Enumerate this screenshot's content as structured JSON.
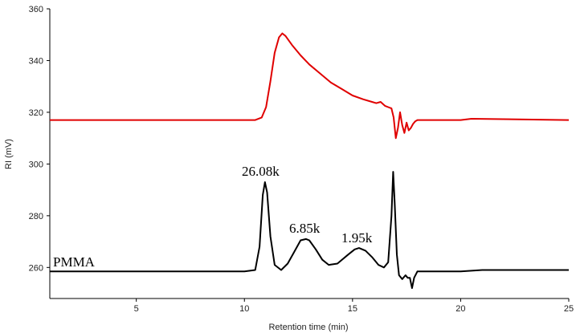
{
  "chart_data": {
    "type": "line",
    "xlabel": "Retention time (min)",
    "ylabel": "RI (mV)",
    "xlim": [
      1,
      25
    ],
    "ylim": [
      248,
      360
    ],
    "x_ticks": [
      5,
      10,
      15,
      20,
      25
    ],
    "y_ticks": [
      260,
      280,
      300,
      320,
      340,
      360
    ],
    "grid": false,
    "series": [
      {
        "name": "",
        "color": "#e00000",
        "x": [
          1,
          10,
          10.5,
          10.8,
          11.0,
          11.2,
          11.4,
          11.6,
          11.75,
          11.9,
          12.2,
          12.6,
          13.0,
          13.5,
          14.0,
          14.5,
          15.0,
          15.5,
          15.9,
          16.1,
          16.3,
          16.5,
          16.65,
          16.8,
          16.9,
          17.0,
          17.1,
          17.2,
          17.3,
          17.4,
          17.5,
          17.6,
          17.7,
          17.8,
          17.9,
          18.0,
          19.0,
          20.0,
          20.5,
          25
        ],
        "y": [
          317,
          317,
          317,
          318,
          322,
          332,
          343,
          349,
          350.5,
          349.5,
          346,
          342,
          338.5,
          335,
          331.5,
          329,
          326.5,
          325,
          324,
          323.5,
          324,
          322.5,
          322,
          321.5,
          318,
          310,
          314,
          320,
          315,
          312,
          316,
          313,
          314,
          315.5,
          316.5,
          317,
          317,
          317,
          317.5,
          317
        ]
      },
      {
        "name": "PMMA",
        "color": "#000000",
        "x": [
          1,
          10,
          10.5,
          10.7,
          10.85,
          10.95,
          11.05,
          11.2,
          11.4,
          11.7,
          12.0,
          12.3,
          12.6,
          12.85,
          13.0,
          13.3,
          13.6,
          13.9,
          14.3,
          14.8,
          15.1,
          15.3,
          15.6,
          15.9,
          16.2,
          16.45,
          16.65,
          16.8,
          16.88,
          16.95,
          17.05,
          17.15,
          17.3,
          17.45,
          17.55,
          17.65,
          17.75,
          17.85,
          18.0,
          20.0,
          21.0,
          25
        ],
        "y": [
          258.5,
          258.5,
          259,
          268,
          288,
          293,
          289,
          272,
          261,
          259,
          261.5,
          266,
          270.5,
          271,
          270.5,
          267,
          263,
          261,
          261.5,
          265,
          267,
          267.5,
          266.5,
          264,
          261,
          260,
          262,
          280,
          297,
          285,
          265,
          257,
          255.5,
          257,
          256,
          256,
          252,
          256,
          258.5,
          258.5,
          259,
          259
        ]
      }
    ],
    "annotations": [
      "26.08k",
      "6.85k",
      "1.95k",
      "PMMA"
    ]
  }
}
